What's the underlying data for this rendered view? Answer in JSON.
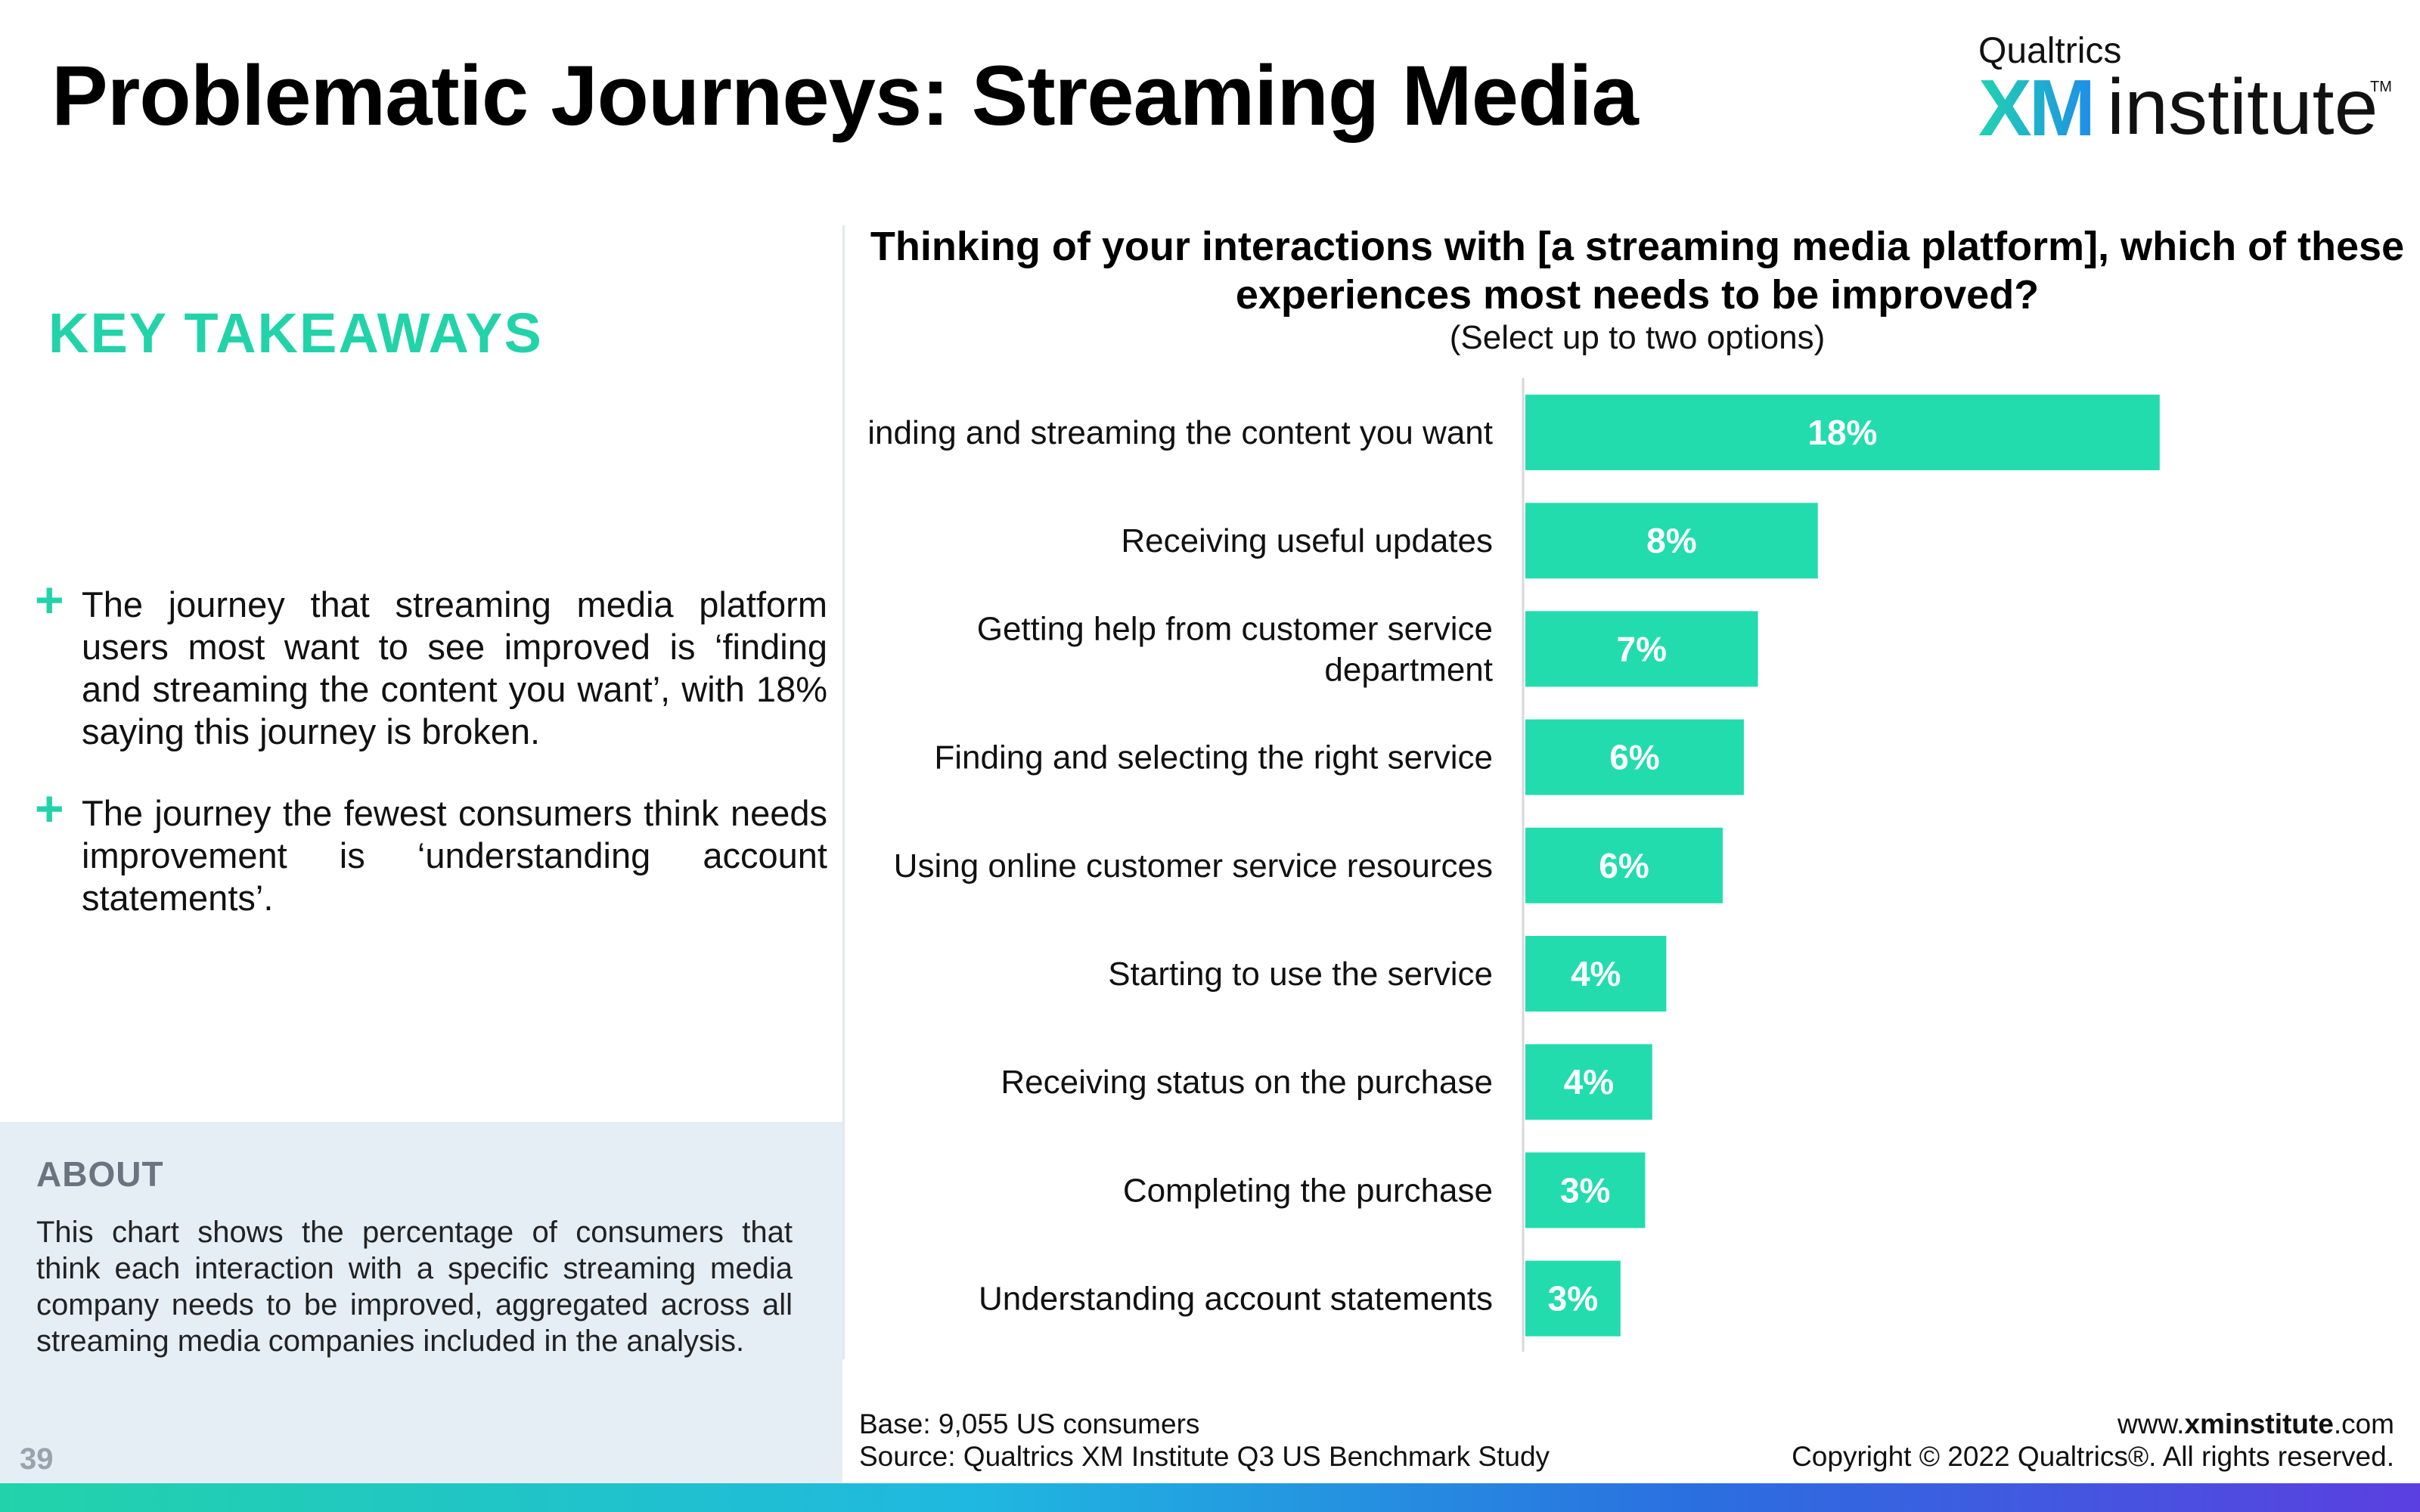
{
  "page": {
    "title": "Problematic Journeys: Streaming Media",
    "page_number": "39"
  },
  "logo": {
    "brand_small": "Qualtrics",
    "brand_xm": "XM",
    "brand_institute": "institute",
    "trademark": "TM",
    "colors": {
      "start": "#20d3b0",
      "end": "#1e8ee8"
    }
  },
  "takeaways": {
    "heading": "KEY TAKEAWAYS",
    "items": [
      "The journey that streaming media platform users most want to see improved is ‘finding and streaming the content you want’, with 18% saying this journey is broken.",
      "The journey the fewest consumers think needs improvement is ‘understanding account statements’."
    ]
  },
  "about": {
    "heading": "ABOUT",
    "text": "This chart shows the percentage of consumers that think each interaction with a specific streaming media company needs to be improved, aggregated across all streaming media companies included in the analysis."
  },
  "chart_data": {
    "type": "bar",
    "orientation": "horizontal",
    "title": "Thinking of your interactions with [a streaming media platform], which of these experiences most needs to be improved?",
    "subtitle": "(Select up to two options)",
    "categories": [
      "Finding and streaming the content you want",
      "Receiving useful updates",
      "Getting help from customer service department",
      "Finding and selecting the right service",
      "Using online customer service resources",
      "Starting to use the service",
      "Receiving status on the purchase",
      "Completing the purchase",
      "Understanding account statements"
    ],
    "values": [
      18,
      8,
      7,
      6,
      6,
      4,
      4,
      3,
      3
    ],
    "value_labels": [
      "18%",
      "8%",
      "7%",
      "6%",
      "6%",
      "4%",
      "4%",
      "3%",
      "3%"
    ],
    "plot_values": [
      18,
      8.3,
      6.6,
      6.2,
      5.6,
      4.0,
      3.6,
      3.4,
      2.7
    ],
    "xlim": [
      0,
      20
    ],
    "grid": false,
    "legend": "none",
    "bar_color": "#22dcae"
  },
  "footer": {
    "base": "Base: 9,055 US consumers",
    "source": "Source: Qualtrics XM Institute Q3 US Benchmark Study",
    "website_prefix": "www.",
    "website_bold": "xminstitute",
    "website_suffix": ".com",
    "copyright": "Copyright © 2022 Qualtrics®. All rights reserved."
  },
  "colors": {
    "accent": "#22d3aa",
    "about_bg": "#e5edf5"
  }
}
